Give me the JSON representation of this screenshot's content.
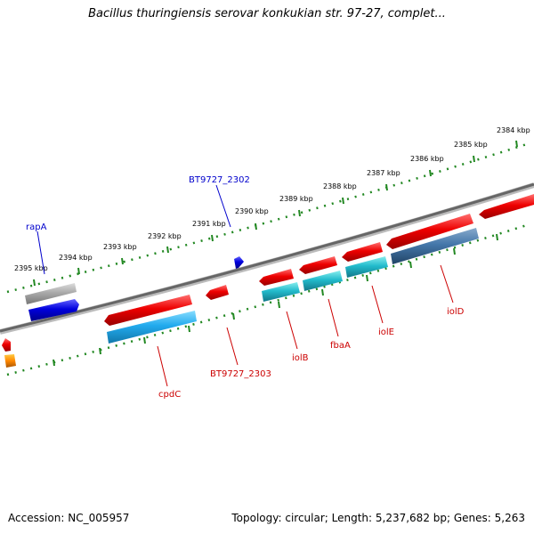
{
  "title": "Bacillus thuringiensis serovar konkukian str. 97-27, complet...",
  "footer": {
    "accession": "Accession: NC_005957",
    "topology": "Topology: circular; Length: 5,237,682 bp; Genes: 5,263"
  },
  "kbp_ticks": [
    "2395 kbp",
    "2394 kbp",
    "2393 kbp",
    "2392 kbp",
    "2391 kbp",
    "2390 kbp",
    "2389 kbp",
    "2388 kbp",
    "2387 kbp",
    "2386 kbp",
    "2385 kbp",
    "2384 kbp"
  ],
  "genes_forward": [
    {
      "label": "rapA",
      "color": "#0000cc"
    },
    {
      "label": "BT9727_2302",
      "color": "#0000cc"
    }
  ],
  "genes_reverse": [
    {
      "label": "cpdC",
      "color": "#cc0000"
    },
    {
      "label": "BT9727_2303",
      "color": "#cc0000"
    },
    {
      "label": "iolB",
      "color": "#cc0000"
    },
    {
      "label": "fbaA",
      "color": "#cc0000"
    },
    {
      "label": "iolE",
      "color": "#cc0000"
    },
    {
      "label": "iolD",
      "color": "#cc0000"
    }
  ],
  "colors": {
    "backbone": "#808080",
    "tick_dots": "#228822",
    "forward_gene": "#0000dd",
    "reverse_gene": "#ee0000",
    "cds_cyan": "#22bbcc",
    "cds_steel": "#4477aa",
    "cds_gray": "#aaaaaa",
    "orange": "#ff8800"
  }
}
